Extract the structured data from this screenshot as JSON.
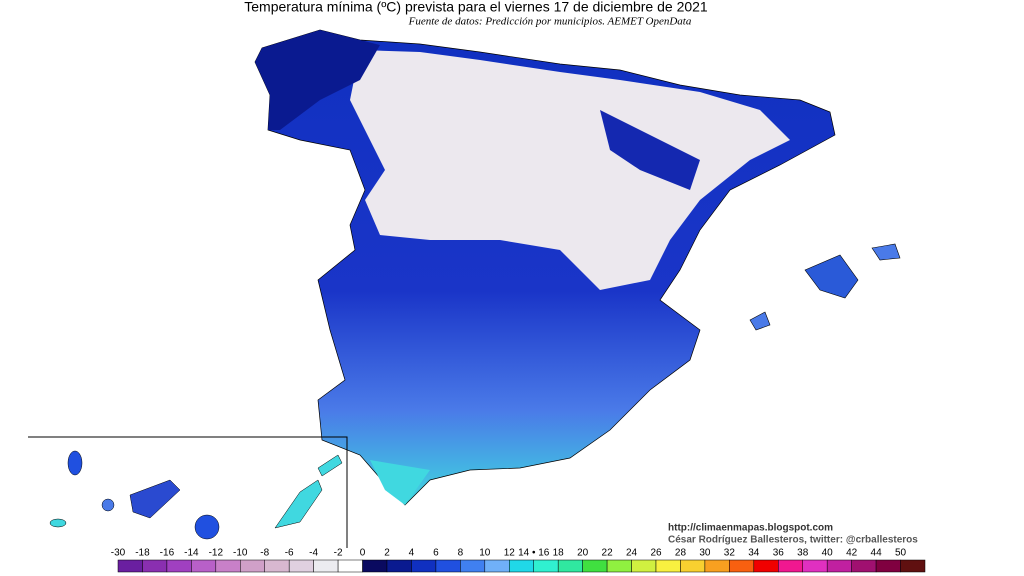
{
  "header": {
    "title": "Temperatura mínima (ºC) prevista para el viernes 17 de diciembre de 2021",
    "subtitle": "Fuente de datos: Predicción por municipios. AEMET OpenData"
  },
  "credits": {
    "url": "http://climaenmapas.blogspot.com",
    "author": "César Rodríguez Ballesteros, twitter: @crballesteros"
  },
  "legend": {
    "labels": [
      "-30",
      "-18",
      "-16",
      "-14",
      "-12",
      "-10",
      "-8",
      "-6",
      "-4",
      "-2",
      "0",
      "2",
      "4",
      "6",
      "8",
      "10",
      "12",
      "14 • 16",
      "18",
      "20",
      "22",
      "24",
      "26",
      "28",
      "30",
      "32",
      "34",
      "36",
      "38",
      "40",
      "42",
      "44",
      "50"
    ],
    "colors": [
      "#6a1fa0",
      "#8a2fb0",
      "#a040c0",
      "#b860c8",
      "#c880c8",
      "#d0a0c8",
      "#d8b8d0",
      "#e0d0e0",
      "#ececf0",
      "#ffffff",
      "#0a0a60",
      "#0a1a90",
      "#1030c0",
      "#2050e0",
      "#4080f0",
      "#70b0f8",
      "#20d8e8",
      "#30f0d0",
      "#30e8a0",
      "#40e040",
      "#90f040",
      "#d0f040",
      "#f8f040",
      "#f8d030",
      "#f8a020",
      "#f86010",
      "#f00000",
      "#f01890",
      "#e030c0",
      "#c020a0",
      "#a01070",
      "#800040",
      "#601010"
    ]
  }
}
